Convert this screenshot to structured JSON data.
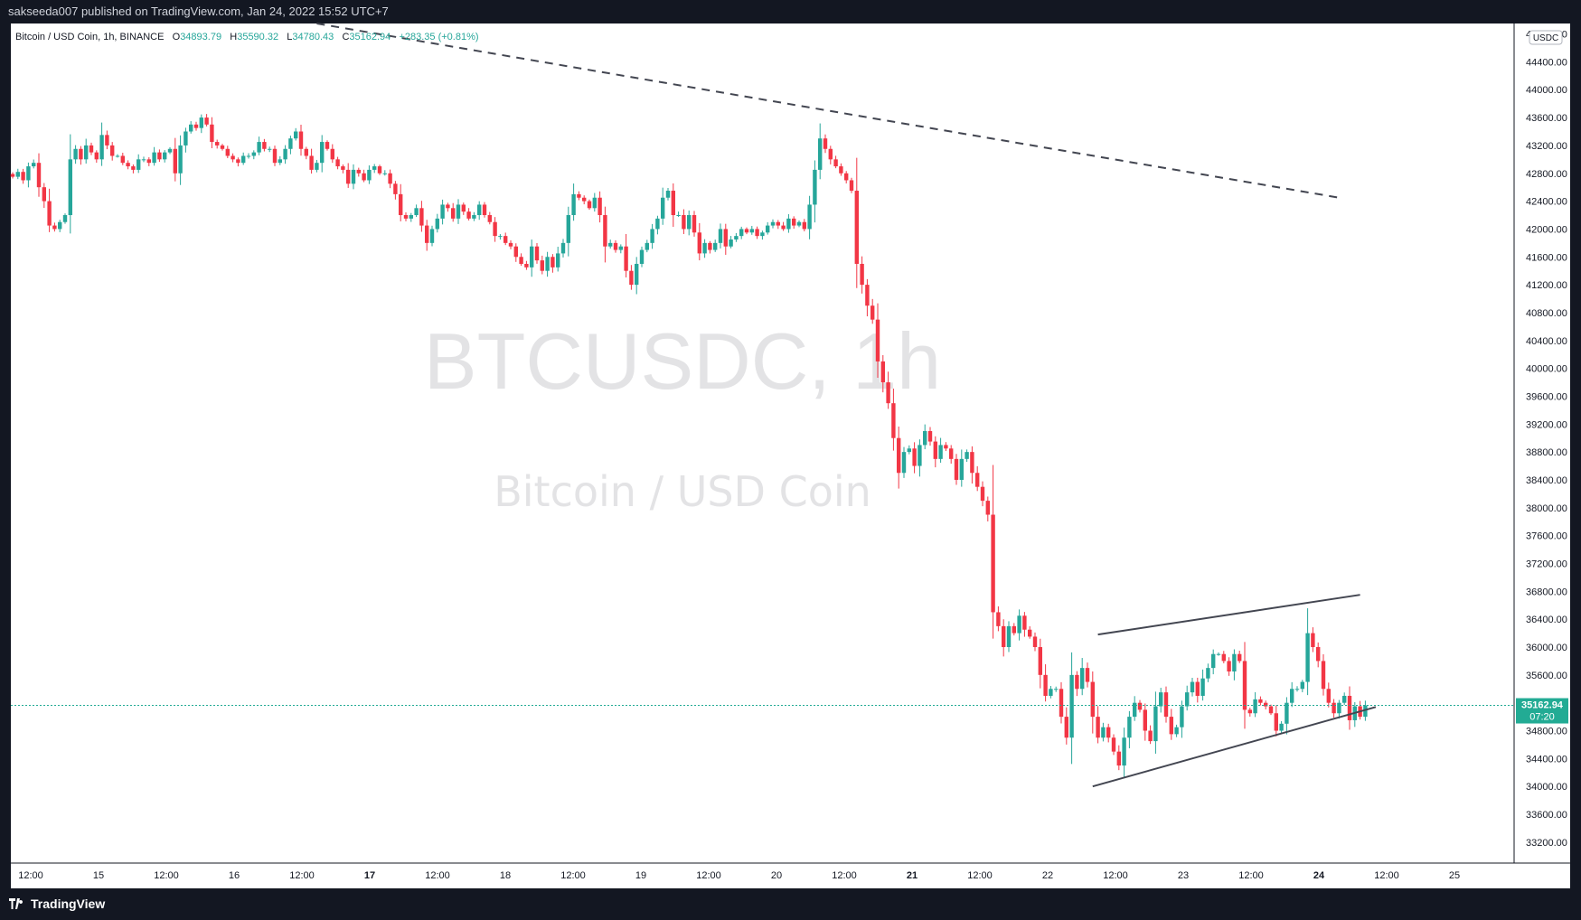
{
  "header": {
    "publish_text": "sakseeda007 published on TradingView.com, Jan 24, 2022 15:52 UTC+7"
  },
  "legend": {
    "symbol": "Bitcoin / USD Coin, 1h, BINANCE",
    "open_label": "O",
    "open": "34893.79",
    "high_label": "H",
    "high": "35590.32",
    "low_label": "L",
    "low": "34780.43",
    "close_label": "C",
    "close": "35162.94",
    "change": "+283.35 (+0.81%)"
  },
  "watermark": {
    "ticker": "BTCUSDC, 1h",
    "name": "Bitcoin / USD Coin"
  },
  "price_axis": {
    "currency_badge": "USDC",
    "current_price_label": "35162.94",
    "countdown": "07:20"
  },
  "footer": {
    "brand": "TradingView"
  },
  "colors": {
    "up": "#26a69a",
    "down": "#ef5350",
    "up_candle": "#26a69a",
    "down_candle": "#f23645",
    "current_price": "#22ab94",
    "trendline": "#434651"
  },
  "chart_data": {
    "type": "candlestick",
    "title": "",
    "y_ticks": [
      33200,
      33600,
      34000,
      34400,
      34800,
      35200,
      35600,
      36000,
      36400,
      36800,
      37200,
      37600,
      38000,
      38400,
      38800,
      39200,
      39600,
      40000,
      40400,
      40800,
      41200,
      41600,
      42000,
      42400,
      42800,
      43200,
      43600,
      44000,
      44400,
      44800
    ],
    "ylim": [
      32900,
      44950
    ],
    "x_ticks": [
      "12:00",
      "15",
      "12:00",
      "16",
      "12:00",
      "17",
      "12:00",
      "18",
      "12:00",
      "19",
      "12:00",
      "20",
      "12:00",
      "21",
      "12:00",
      "22",
      "12:00",
      "23",
      "12:00",
      "24",
      "12:00",
      "25"
    ],
    "current_price": 35162.94,
    "closes": [
      42750,
      42820,
      42700,
      42900,
      42950,
      42600,
      42400,
      42050,
      42000,
      42100,
      42200,
      43000,
      43150,
      43000,
      43200,
      43100,
      43000,
      43350,
      43200,
      43050,
      43050,
      42950,
      42900,
      42850,
      43000,
      43000,
      42950,
      43100,
      43000,
      43100,
      43150,
      42800,
      43200,
      43400,
      43500,
      43450,
      43600,
      43500,
      43250,
      43200,
      43150,
      43050,
      43000,
      42950,
      43050,
      43050,
      43100,
      43250,
      43150,
      43150,
      42950,
      43000,
      43150,
      43300,
      43400,
      43150,
      43050,
      42850,
      42950,
      43250,
      43150,
      43000,
      42900,
      42850,
      42650,
      42850,
      42800,
      42700,
      42850,
      42900,
      42800,
      42800,
      42650,
      42500,
      42200,
      42150,
      42200,
      42300,
      42050,
      41800,
      42000,
      42150,
      42350,
      42300,
      42150,
      42350,
      42250,
      42150,
      42200,
      42350,
      42200,
      42100,
      41900,
      41900,
      41800,
      41750,
      41600,
      41500,
      41450,
      41750,
      41550,
      41400,
      41600,
      41450,
      41650,
      41800,
      42200,
      42500,
      42450,
      42400,
      42300,
      42450,
      42200,
      41750,
      41800,
      41700,
      41750,
      41400,
      41200,
      41500,
      41700,
      41800,
      42000,
      42150,
      42450,
      42550,
      42200,
      42200,
      42000,
      42200,
      41950,
      41650,
      41800,
      41700,
      41800,
      42000,
      41750,
      41850,
      41900,
      42000,
      41950,
      42000,
      41900,
      41950,
      42050,
      42100,
      42050,
      42000,
      42150,
      42050,
      42100,
      42000,
      42350,
      42850,
      43300,
      43150,
      43000,
      42900,
      42800,
      42700,
      42550,
      41500,
      41200,
      40900,
      40700,
      40100,
      39800,
      39500,
      39000,
      38500,
      38800,
      38850,
      38600,
      38900,
      39100,
      38950,
      38700,
      38900,
      38850,
      38700,
      38400,
      38700,
      38800,
      38500,
      38300,
      38100,
      37900,
      36500,
      36300,
      36000,
      36300,
      36200,
      36450,
      36250,
      36150,
      36000,
      35600,
      35300,
      35400,
      35400,
      35000,
      34700,
      35600,
      35400,
      35700,
      35500,
      35000,
      34700,
      34850,
      34700,
      34500,
      34300,
      34700,
      35000,
      35200,
      35100,
      34800,
      34650,
      35150,
      35350,
      35000,
      34750,
      34850,
      35150,
      35350,
      35500,
      35300,
      35550,
      35700,
      35900,
      35900,
      35800,
      35650,
      35900,
      35800,
      35100,
      35050,
      35250,
      35200,
      35150,
      35050,
      34800,
      34900,
      35200,
      35400,
      35400,
      35500,
      36200,
      36000,
      35800,
      35400,
      35200,
      35050,
      35200,
      35300,
      34950,
      35150,
      35000,
      35162.94
    ],
    "lines": [
      {
        "name": "",
        "style": "dashed",
        "from": {
          "x_index": 58,
          "y": 44950
        },
        "to": {
          "x_index": 253,
          "y": 42450
        }
      },
      {
        "name": "",
        "style": "solid",
        "from": {
          "x_index": 207,
          "y": 36180
        },
        "to": {
          "x_index": 257,
          "y": 36750
        }
      },
      {
        "name": "",
        "style": "solid",
        "from": {
          "x_index": 206,
          "y": 34000
        },
        "to": {
          "x_index": 260,
          "y": 35140
        }
      }
    ]
  }
}
